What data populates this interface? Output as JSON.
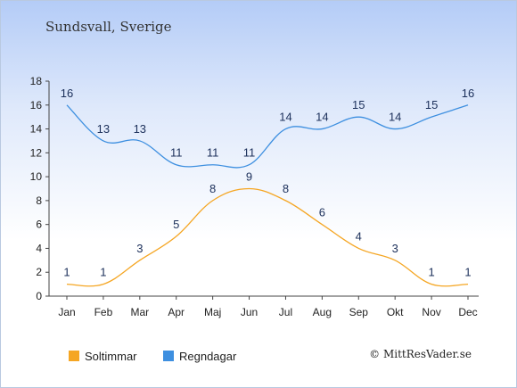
{
  "title": "Sundsvall, Sverige",
  "credit": "© MittResVader.se",
  "chart_data": {
    "type": "line",
    "categories": [
      "Jan",
      "Feb",
      "Mar",
      "Apr",
      "Maj",
      "Jun",
      "Jul",
      "Aug",
      "Sep",
      "Okt",
      "Nov",
      "Dec"
    ],
    "series": [
      {
        "name": "Soltimmar",
        "values": [
          1,
          1,
          3,
          5,
          8,
          9,
          8,
          6,
          4,
          3,
          1,
          1
        ],
        "color": "#f5a623"
      },
      {
        "name": "Regndagar",
        "values": [
          16,
          13,
          13,
          11,
          11,
          11,
          14,
          14,
          15,
          14,
          15,
          16
        ],
        "color": "#3d8fe0"
      }
    ],
    "yticks": [
      0,
      2,
      4,
      6,
      8,
      10,
      12,
      14,
      16,
      18
    ],
    "ylim": [
      0,
      18
    ],
    "legend_position": "bottom-left",
    "grid": false
  }
}
